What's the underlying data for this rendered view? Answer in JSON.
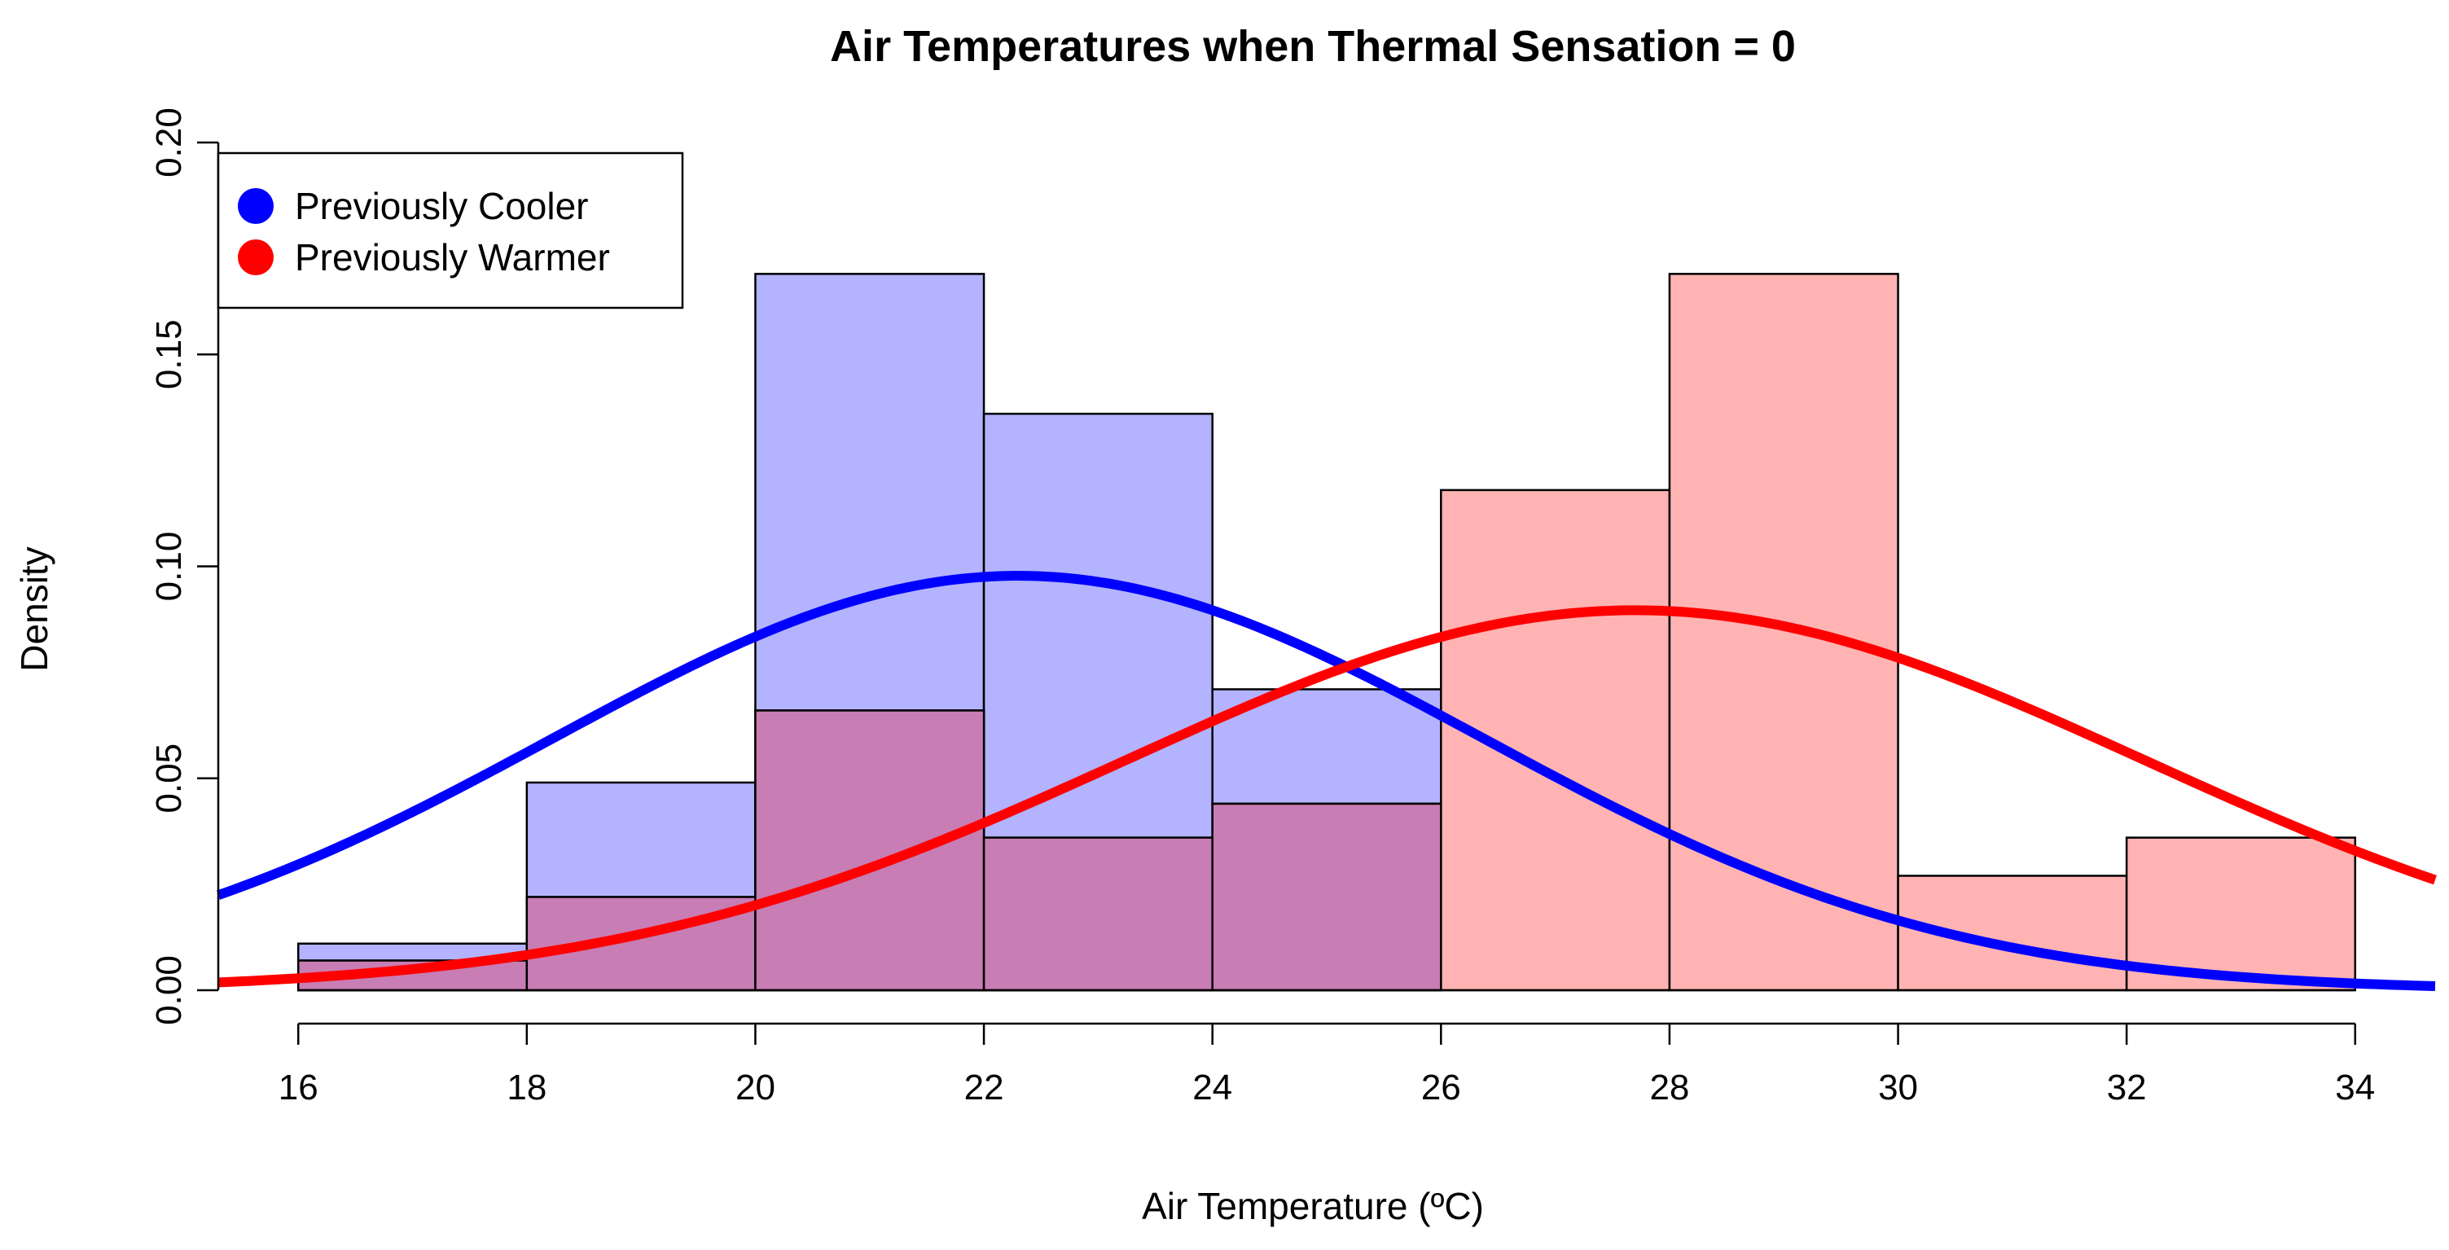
{
  "chart_data": {
    "type": "histogram",
    "title": "Air Temperatures when Thermal Sensation = 0",
    "xlabel": "Air Temperature (ºC)",
    "ylabel": "Density",
    "xlim": [
      15.3,
      34.7
    ],
    "ylim": [
      0,
      0.2
    ],
    "x_ticks": [
      16,
      18,
      20,
      22,
      24,
      26,
      28,
      30,
      32,
      34
    ],
    "x_tick_labels": [
      "16",
      "18",
      "20",
      "22",
      "24",
      "26",
      "28",
      "30",
      "32",
      "34"
    ],
    "y_ticks": [
      0,
      0.05,
      0.1,
      0.15,
      0.2
    ],
    "y_tick_labels": [
      "0.00",
      "0.05",
      "0.10",
      "0.15",
      "0.20"
    ],
    "bin_edges": [
      16,
      18,
      20,
      22,
      24,
      26,
      28,
      30,
      32,
      34
    ],
    "series": [
      {
        "name": "Previously Cooler",
        "color": "#0000ff",
        "fill": "#b3b3ff",
        "densities": [
          0.011,
          0.049,
          0.169,
          0.136,
          0.071,
          0.0,
          0.0,
          0.0,
          0.0
        ],
        "curve": {
          "type": "normal",
          "mean": 22.3,
          "sd": 4.08
        }
      },
      {
        "name": "Previously Warmer",
        "color": "#ff0000",
        "fill": "#ffb3b3",
        "densities": [
          0.007,
          0.022,
          0.066,
          0.036,
          0.044,
          0.118,
          0.169,
          0.027,
          0.036
        ],
        "curve": {
          "type": "normal",
          "mean": 27.7,
          "sd": 4.45
        }
      }
    ],
    "overlap_fill": "#c87db4",
    "legend": {
      "position": "top-left",
      "entries": [
        "Previously Cooler",
        "Previously Warmer"
      ]
    }
  }
}
